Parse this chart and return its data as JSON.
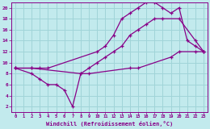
{
  "xlabel": "Windchill (Refroidissement éolien,°C)",
  "bg_color": "#c2eaed",
  "grid_color": "#a0d4d8",
  "line_color": "#880088",
  "xlim": [
    -0.5,
    23.5
  ],
  "ylim": [
    1,
    21
  ],
  "xticks": [
    0,
    1,
    2,
    3,
    4,
    5,
    6,
    7,
    8,
    9,
    10,
    11,
    12,
    13,
    14,
    15,
    16,
    17,
    18,
    19,
    20,
    21,
    22,
    23
  ],
  "yticks": [
    2,
    4,
    6,
    8,
    10,
    12,
    14,
    16,
    18,
    20
  ],
  "series": [
    {
      "x": [
        0,
        2,
        3,
        4,
        10,
        11,
        12,
        13,
        14,
        15,
        16,
        17,
        18,
        19,
        20,
        21,
        22,
        23
      ],
      "y": [
        9,
        9,
        9,
        9,
        12,
        13,
        15,
        18,
        19,
        20,
        21,
        21,
        20,
        19,
        20,
        14,
        13,
        12
      ]
    },
    {
      "x": [
        0,
        2,
        3,
        4,
        5,
        6,
        7,
        8,
        9,
        10,
        11,
        12,
        13,
        14,
        15,
        16,
        17,
        18,
        20,
        22,
        23
      ],
      "y": [
        9,
        8,
        7,
        6,
        6,
        5,
        2,
        8,
        9,
        10,
        11,
        12,
        13,
        15,
        16,
        17,
        18,
        18,
        18,
        14,
        12
      ]
    },
    {
      "x": [
        0,
        2,
        8,
        9,
        14,
        15,
        19,
        20,
        22,
        23
      ],
      "y": [
        9,
        9,
        8,
        8,
        9,
        9,
        11,
        12,
        12,
        12
      ]
    }
  ]
}
